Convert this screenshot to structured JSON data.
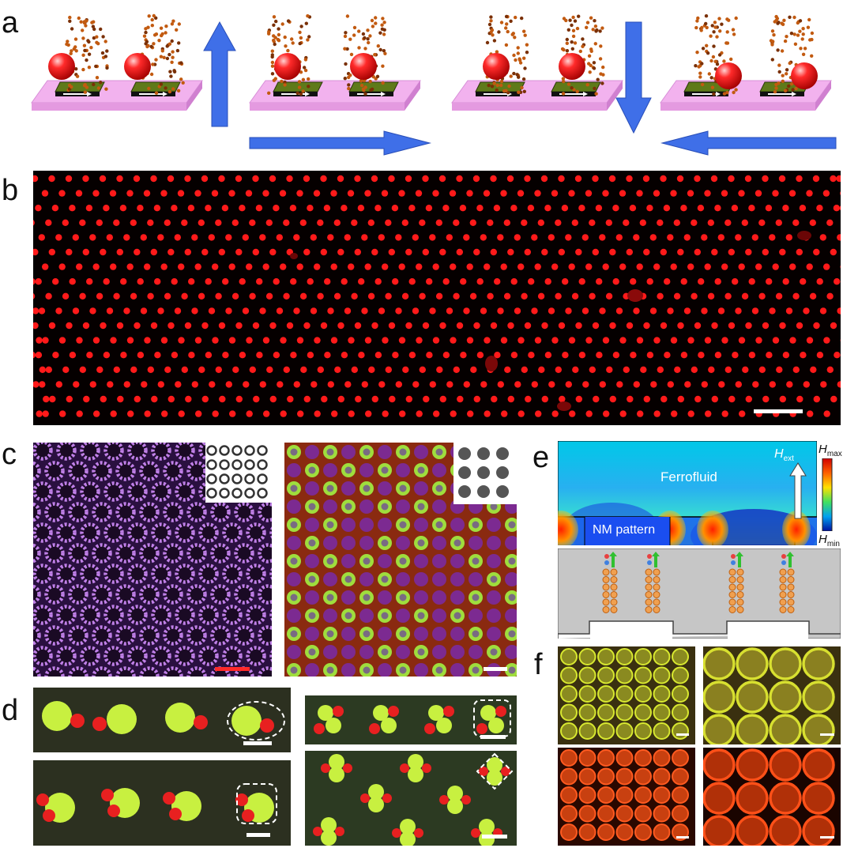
{
  "panels": {
    "a": "a",
    "b": "b",
    "c": "c",
    "d": "d",
    "e": "e",
    "f": "f"
  },
  "panel_e": {
    "ferrofluid_label": "Ferrofluid",
    "pattern_label": "NM pattern",
    "field_label_main": "H",
    "field_label_sub": "ext",
    "colorbar_max_main": "H",
    "colorbar_max_sub": "max",
    "colorbar_min_main": "H",
    "colorbar_min_sub": "min"
  },
  "colors": {
    "particle_red": "#ff1a1a",
    "arrow_blue": "#3f6fe8",
    "substrate_pink": "#f2a8f0",
    "pad_green": "#5f7a1a",
    "lattice_purple": "#b070d8",
    "green_bead": "#b8f04a"
  }
}
